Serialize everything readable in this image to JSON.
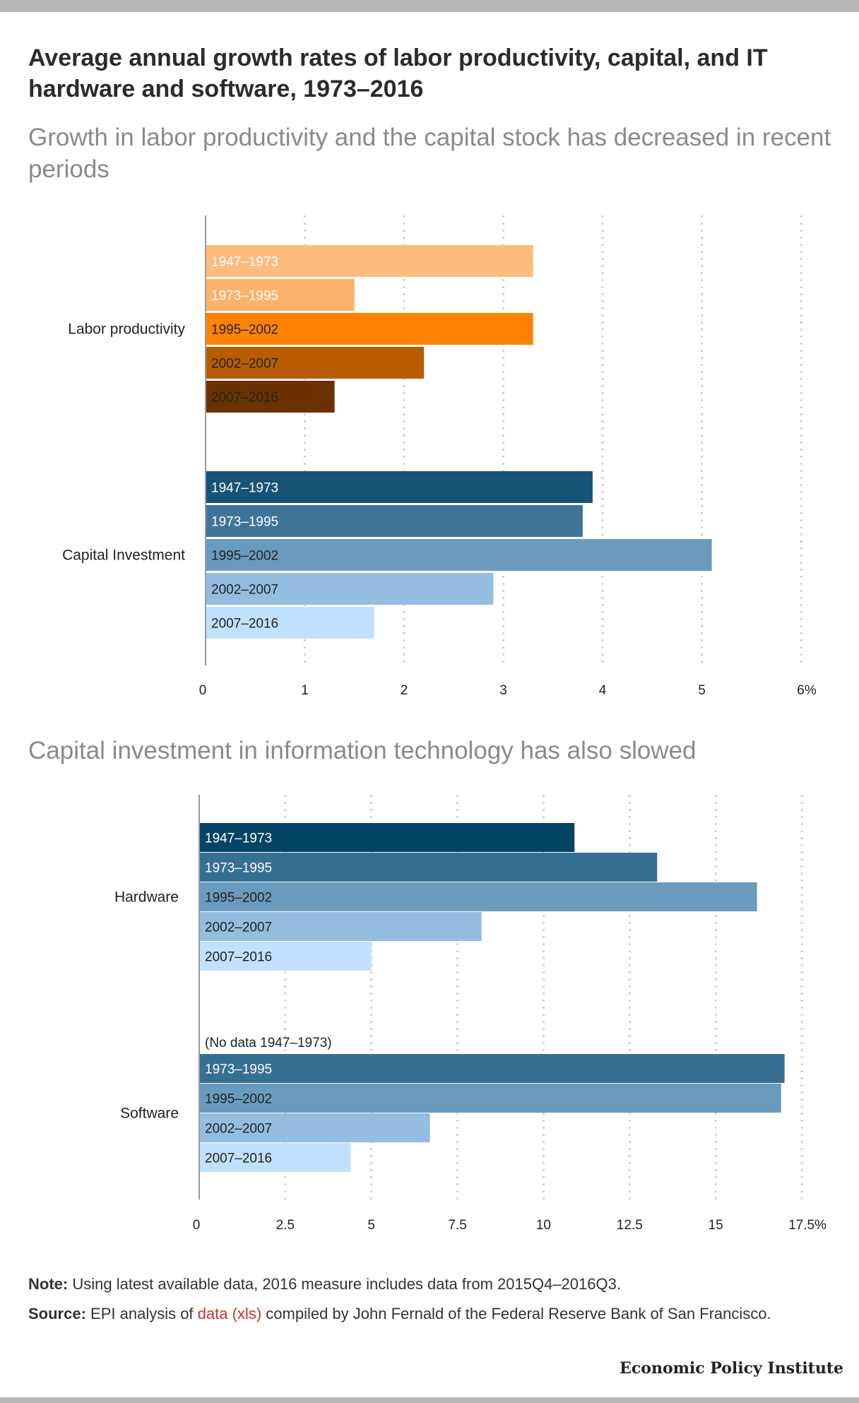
{
  "title": "Average annual growth rates of labor productivity, capital, and IT hardware and software, 1973–2016",
  "subtitle1": "Growth in labor productivity and the capital stock has decreased in recent periods",
  "subtitle2": "Capital investment in information technology has also slowed",
  "note": {
    "label": "Note:",
    "text": " Using latest available data, 2016 measure includes data from 2015Q4–2016Q3."
  },
  "source": {
    "label": "Source:",
    "pre": " EPI analysis of ",
    "link": "data (xls)",
    "post": " compiled by John Fernald of the Federal Reserve Bank of San Francisco."
  },
  "brand": "Economic Policy Institute",
  "chart_data": [
    {
      "type": "bar",
      "orientation": "horizontal",
      "xlim": [
        0,
        6
      ],
      "ticks": [
        "0",
        "1",
        "2",
        "3",
        "4",
        "5",
        "6%"
      ],
      "tick_values": [
        0,
        1,
        2,
        3,
        4,
        5,
        6
      ],
      "grid": true,
      "groups": [
        {
          "name": "Labor productivity",
          "bars": [
            {
              "label": "1947–1973",
              "value": 3.3,
              "color": "#fdbb7e",
              "text_color": "#ffffff"
            },
            {
              "label": "1973–1995",
              "value": 1.5,
              "color": "#fdb26b",
              "text_color": "#ffffff"
            },
            {
              "label": "1995–2002",
              "value": 3.3,
              "color": "#ff8300",
              "text_color": "#222222"
            },
            {
              "label": "2002–2007",
              "value": 2.2,
              "color": "#b85c00",
              "text_color": "#222222"
            },
            {
              "label": "2007–2016",
              "value": 1.3,
              "color": "#6b3200",
              "text_color": "#222222"
            }
          ]
        },
        {
          "name": "Capital Investment",
          "bars": [
            {
              "label": "1947–1973",
              "value": 3.9,
              "color": "#175377",
              "text_color": "#ffffff"
            },
            {
              "label": "1973–1995",
              "value": 3.8,
              "color": "#3e7499",
              "text_color": "#ffffff"
            },
            {
              "label": "1995–2002",
              "value": 5.1,
              "color": "#699bbd",
              "text_color": "#222222"
            },
            {
              "label": "2002–2007",
              "value": 2.9,
              "color": "#94bddf",
              "text_color": "#222222"
            },
            {
              "label": "2007–2016",
              "value": 1.7,
              "color": "#c2e1fe",
              "text_color": "#222222"
            }
          ]
        }
      ]
    },
    {
      "type": "bar",
      "orientation": "horizontal",
      "xlim": [
        0,
        17.5
      ],
      "ticks": [
        "0",
        "2.5",
        "5",
        "7.5",
        "10",
        "12.5",
        "15",
        "17.5%"
      ],
      "tick_values": [
        0,
        2.5,
        5,
        7.5,
        10,
        12.5,
        15,
        17.5
      ],
      "grid": true,
      "groups": [
        {
          "name": "Hardware",
          "bars": [
            {
              "label": "1947–1973",
              "value": 10.9,
              "color": "#034466",
              "text_color": "#ffffff"
            },
            {
              "label": "1973–1995",
              "value": 13.3,
              "color": "#356f94",
              "text_color": "#ffffff"
            },
            {
              "label": "1995–2002",
              "value": 16.2,
              "color": "#6a9bbe",
              "text_color": "#222222"
            },
            {
              "label": "2002–2007",
              "value": 8.2,
              "color": "#94bddf",
              "text_color": "#222222"
            },
            {
              "label": "2007–2016",
              "value": 5.0,
              "color": "#c2e1fe",
              "text_color": "#222222"
            }
          ]
        },
        {
          "name": "Software",
          "annotation": "(No data 1947–1973)",
          "bars": [
            {
              "label": "1973–1995",
              "value": 17.0,
              "color": "#356f94",
              "text_color": "#ffffff"
            },
            {
              "label": "1995–2002",
              "value": 16.9,
              "color": "#6a9bbe",
              "text_color": "#222222"
            },
            {
              "label": "2002–2007",
              "value": 6.7,
              "color": "#94bddf",
              "text_color": "#222222"
            },
            {
              "label": "2007–2016",
              "value": 4.4,
              "color": "#c2e1fe",
              "text_color": "#222222"
            }
          ]
        }
      ]
    }
  ]
}
